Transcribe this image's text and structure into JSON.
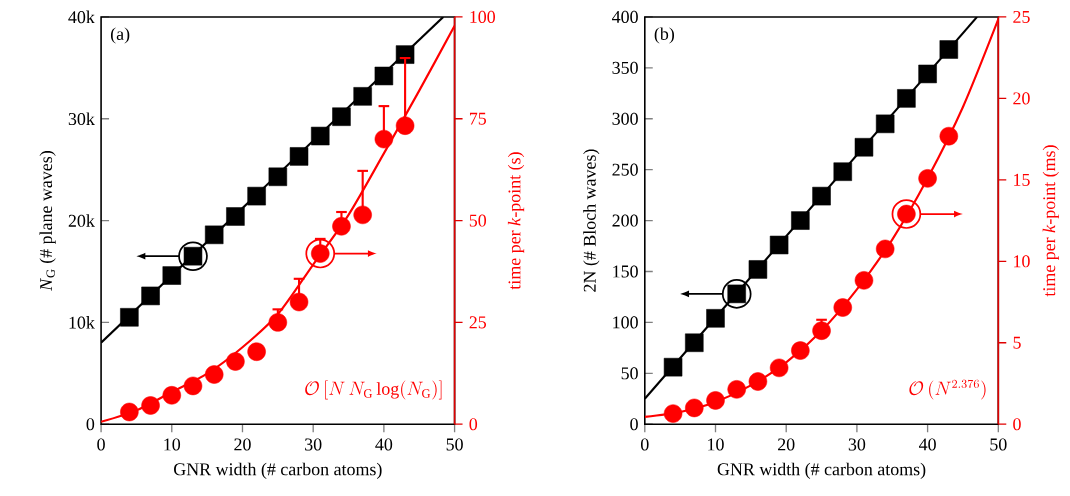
{
  "chart_data": [
    {
      "type": "scatter",
      "annotations": [
        "(a)",
        "\\mathcal{O}\\left[N\\,N_{\\mathrm{G}}\\log(N_{\\mathrm{G}})\\right]"
      ],
      "xlabel": "GNR width (# carbon atoms)",
      "ylabel": "*N*$_{G}$ (# plane waves)",
      "y2label": "time per *k*-point (s)",
      "xlim": [
        0,
        50
      ],
      "xticks": [
        0,
        10,
        20,
        30,
        40,
        50
      ],
      "ylim": [
        0,
        40000
      ],
      "yticks": [
        0,
        {
          "value": 10000,
          "label": "10k"
        },
        {
          "value": 20000,
          "label": "20k"
        },
        {
          "value": 30000,
          "label": "30k"
        },
        {
          "value": 40000,
          "label": "40k"
        }
      ],
      "y2lim": [
        0,
        100
      ],
      "y2ticks": [
        0,
        25,
        50,
        75,
        100
      ],
      "series": [
        {
          "color": "#000000",
          "marker": "square",
          "x": [
            4,
            7,
            10,
            13,
            16,
            19,
            22,
            25,
            28,
            31,
            34,
            37,
            40,
            43
          ],
          "values": [
            10500,
            12600,
            14600,
            16500,
            18600,
            20400,
            22400,
            24300,
            26300,
            28300,
            30200,
            32200,
            34200,
            36300
          ]
        },
        {
          "type": "line",
          "color": "#000000",
          "x": [
            0,
            48.4
          ],
          "values": [
            8000,
            40000
          ]
        },
        {
          "axis": "y2",
          "color": "#ff0000",
          "marker": "circle",
          "x": [
            4,
            7,
            10,
            13,
            16,
            19,
            22,
            25,
            28,
            31,
            34,
            37,
            40,
            43
          ],
          "values": [
            3.0,
            4.6,
            7.1,
            9.4,
            12.2,
            15.4,
            17.8,
            25.0,
            30.0,
            41.9,
            48.6,
            51.4,
            70.0,
            73.3
          ],
          "errors": [
            null,
            null,
            null,
            null,
            null,
            null,
            [
              17.8,
              19.3
            ],
            [
              25.0,
              28.2
            ],
            [
              30.0,
              35.7
            ],
            [
              41.9,
              45.5
            ],
            [
              48.6,
              52.1
            ],
            [
              51.4,
              62.2
            ],
            [
              70.0,
              78.1
            ],
            [
              73.3,
              89.9
            ]
          ]
        },
        {
          "type": "line",
          "axis": "y2",
          "color": "#ff0000",
          "x": [
            0,
            5,
            10,
            15,
            20,
            25,
            30,
            35,
            40,
            45,
            50
          ],
          "values": [
            0.6,
            3.4,
            7.9,
            12.4,
            18.9,
            27.0,
            39.2,
            51.4,
            66.5,
            81.9,
            97.8
          ]
        }
      ]
    },
    {
      "type": "scatter",
      "annotations": [
        "(b)",
        "\\mathcal{O}\\left(N^{2.376}\\right)"
      ],
      "xlabel": "GNR width (# carbon atoms)",
      "ylabel": "2N (# Bloch waves)",
      "y2label": "time per *k*-point (ms)",
      "xlim": [
        0,
        50
      ],
      "xticks": [
        0,
        10,
        20,
        30,
        40,
        50
      ],
      "ylim": [
        0,
        400
      ],
      "yticks": [
        0,
        50,
        100,
        150,
        200,
        250,
        300,
        350,
        400
      ],
      "y2lim": [
        0,
        25
      ],
      "y2ticks": [
        0,
        5,
        10,
        15,
        20,
        25
      ],
      "series": [
        {
          "color": "#000000",
          "marker": "square",
          "x": [
            4,
            7,
            10,
            13,
            16,
            19,
            22,
            25,
            28,
            31,
            34,
            37,
            40,
            43
          ],
          "values": [
            56,
            80,
            104,
            128,
            152,
            176,
            200,
            224,
            248,
            272,
            295,
            320,
            344,
            368
          ]
        },
        {
          "type": "line",
          "color": "#000000",
          "x": [
            0,
            47.0
          ],
          "values": [
            25,
            400
          ]
        },
        {
          "axis": "y2",
          "color": "#ff0000",
          "marker": "circle",
          "x": [
            4,
            7,
            10,
            13,
            16,
            19,
            22,
            25,
            28,
            31,
            34,
            37,
            40,
            43
          ],
          "values": [
            0.65,
            1.0,
            1.46,
            2.14,
            2.62,
            3.46,
            4.52,
            5.74,
            7.16,
            8.83,
            10.76,
            12.9,
            15.09,
            17.68
          ],
          "errors": [
            null,
            null,
            null,
            null,
            null,
            null,
            null,
            [
              5.74,
              6.41
            ],
            null,
            null,
            null,
            null,
            null,
            null
          ]
        },
        {
          "type": "line",
          "axis": "y2",
          "color": "#ff0000",
          "x": [
            0,
            5,
            10,
            15,
            20,
            25,
            30,
            35,
            40,
            45,
            50
          ],
          "values": [
            0.45,
            0.75,
            1.36,
            2.38,
            3.8,
            5.74,
            8.28,
            11.33,
            15.09,
            19.47,
            24.86
          ]
        }
      ]
    }
  ]
}
